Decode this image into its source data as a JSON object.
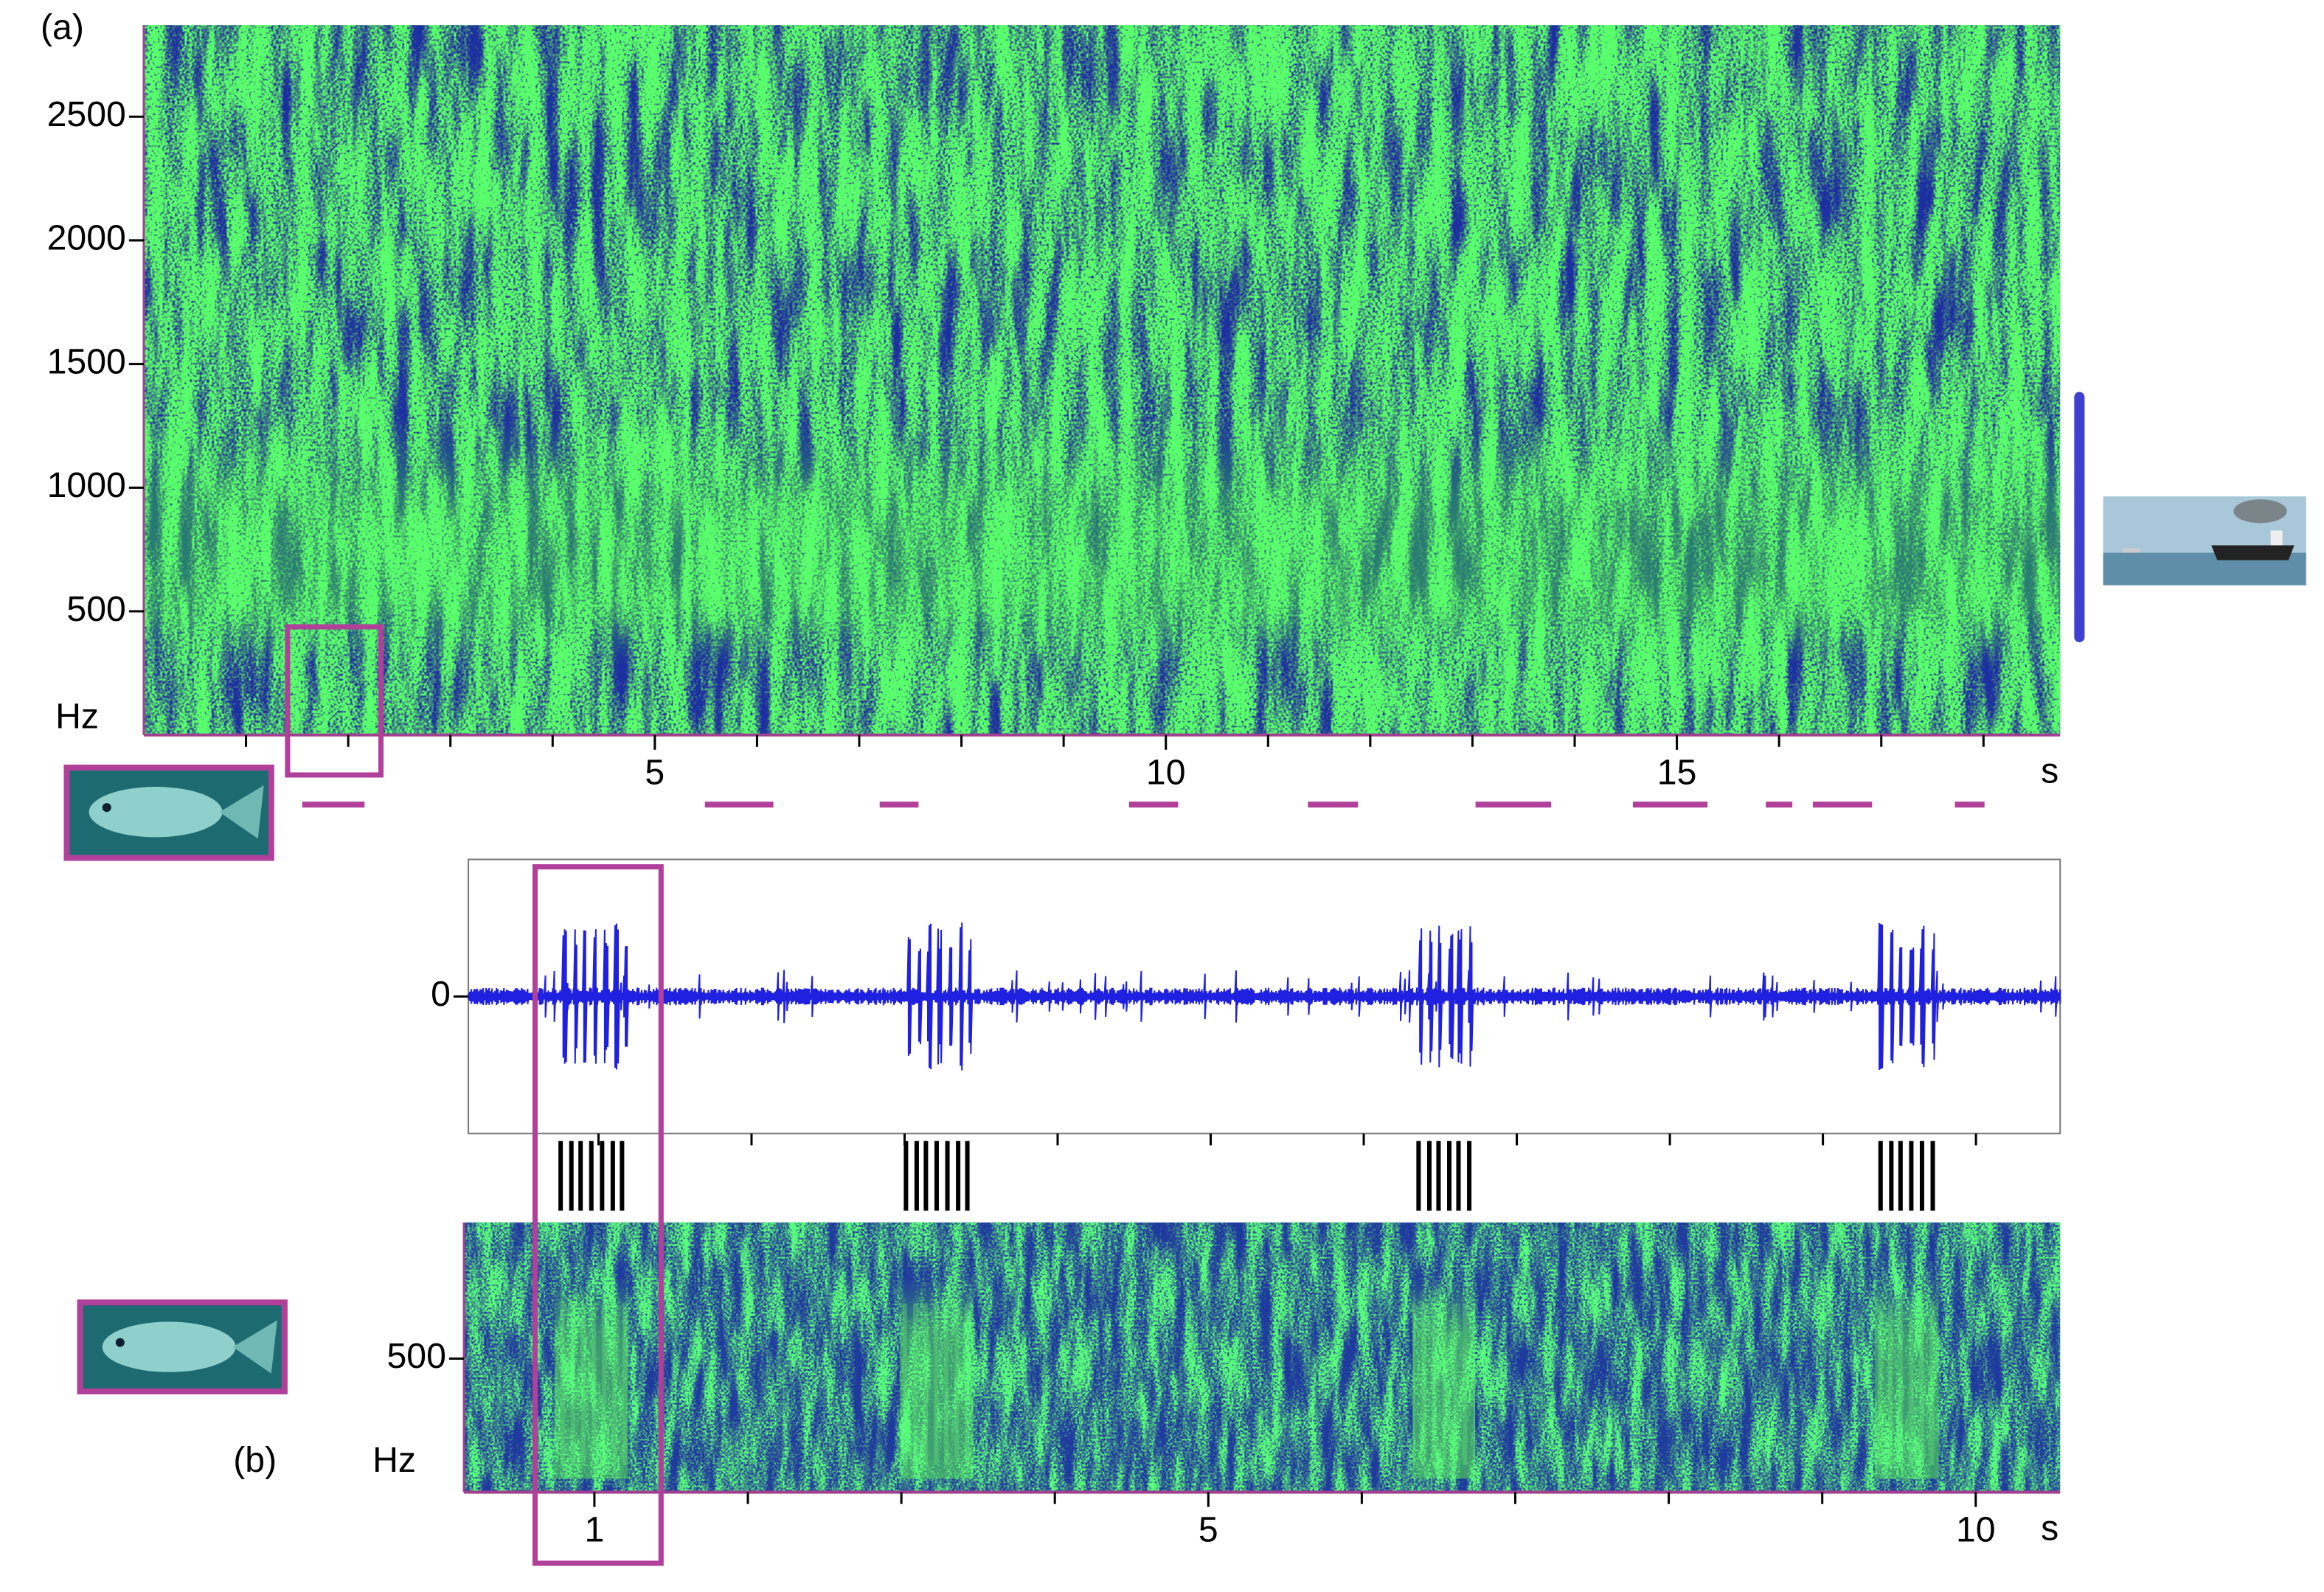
{
  "chart_data": [
    {
      "type": "spectrogram",
      "panel_label": "(a)",
      "y_unit": "Hz",
      "x_unit": "s",
      "xlim": [
        0,
        18.75
      ],
      "ylim": [
        0,
        2870
      ],
      "xticks": [
        5,
        10,
        15
      ],
      "xminor": [
        1,
        2,
        3,
        4,
        6,
        7,
        8,
        9,
        11,
        12,
        13,
        14,
        16,
        17,
        18
      ],
      "yticks": [
        500,
        1000,
        1500,
        2000,
        2500
      ],
      "call_segments": [
        [
          1.55,
          2.16
        ],
        [
          5.49,
          6.16
        ],
        [
          7.2,
          7.58
        ],
        [
          9.64,
          10.12
        ],
        [
          11.39,
          11.88
        ],
        [
          13.03,
          13.77
        ],
        [
          14.57,
          15.3
        ],
        [
          15.87,
          16.13
        ],
        [
          16.33,
          16.91
        ],
        [
          17.72,
          18.01
        ]
      ]
    },
    {
      "type": "waveform",
      "xlim": [
        0.15,
        10.55
      ],
      "ylim": [
        -1,
        1
      ],
      "yticks": [
        0
      ],
      "xminor": [
        1,
        2,
        3,
        4,
        5,
        6,
        7,
        8,
        9,
        10
      ]
    },
    {
      "type": "spectrogram",
      "panel_label": "(b)",
      "y_unit": "Hz",
      "x_unit": "s",
      "xlim": [
        0.15,
        10.55
      ],
      "ylim": [
        0,
        1010
      ],
      "xticks": [
        1,
        5,
        10
      ],
      "xminor": [
        2,
        3,
        4,
        6,
        7,
        8,
        9
      ],
      "yticks": [
        500
      ],
      "pulses": [
        [
          0.78,
          0.85,
          0.91,
          0.98,
          1.05,
          1.12,
          1.18
        ],
        [
          3.03,
          3.1,
          3.16,
          3.23,
          3.3,
          3.37,
          3.43
        ],
        [
          6.37,
          6.44,
          6.5,
          6.57,
          6.63,
          6.7
        ],
        [
          9.38,
          9.45,
          9.51,
          9.58,
          9.65,
          9.72
        ]
      ]
    }
  ]
}
